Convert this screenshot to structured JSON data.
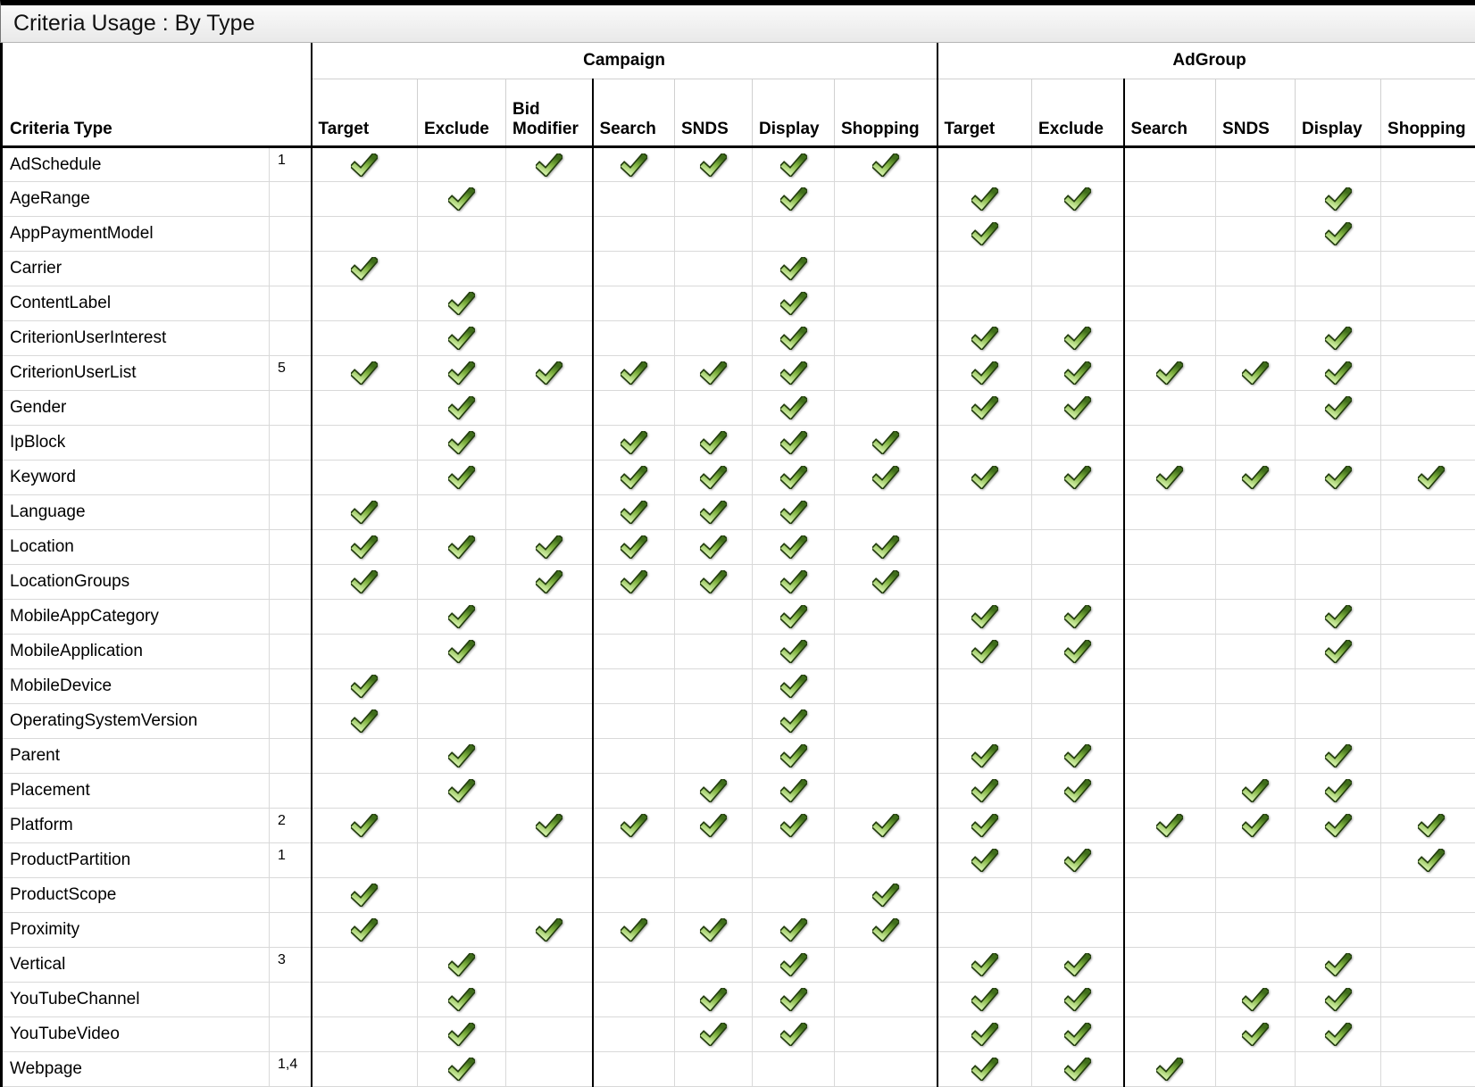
{
  "title": "Criteria Usage : By Type",
  "colors": {
    "check_outline": "#223c0e",
    "check_dark": "#3f6d1a",
    "check_mid": "#7fb23f",
    "check_light": "#cdeca1",
    "grid_line": "#d9d9d9",
    "group_border": "#000000"
  },
  "icons": {
    "check": "green-checkmark"
  },
  "table": {
    "criteria_type_header": "Criteria Type",
    "groups": [
      {
        "label": "Campaign",
        "columns": [
          "Target",
          "Exclude",
          "Bid Modifier",
          "Search",
          "SNDS",
          "Display",
          "Shopping"
        ]
      },
      {
        "label": "AdGroup",
        "columns": [
          "Target",
          "Exclude",
          "Search",
          "SNDS",
          "Display",
          "Shopping"
        ]
      }
    ],
    "rows": [
      {
        "type": "AdSchedule",
        "note": "1",
        "campaign": [
          1,
          0,
          1,
          1,
          1,
          1,
          1
        ],
        "adgroup": [
          0,
          0,
          0,
          0,
          0,
          0
        ]
      },
      {
        "type": "AgeRange",
        "campaign": [
          0,
          1,
          0,
          0,
          0,
          1,
          0
        ],
        "adgroup": [
          1,
          1,
          0,
          0,
          1,
          0
        ]
      },
      {
        "type": "AppPaymentModel",
        "campaign": [
          0,
          0,
          0,
          0,
          0,
          0,
          0
        ],
        "adgroup": [
          1,
          0,
          0,
          0,
          1,
          0
        ]
      },
      {
        "type": "Carrier",
        "campaign": [
          1,
          0,
          0,
          0,
          0,
          1,
          0
        ],
        "adgroup": [
          0,
          0,
          0,
          0,
          0,
          0
        ]
      },
      {
        "type": "ContentLabel",
        "campaign": [
          0,
          1,
          0,
          0,
          0,
          1,
          0
        ],
        "adgroup": [
          0,
          0,
          0,
          0,
          0,
          0
        ]
      },
      {
        "type": "CriterionUserInterest",
        "campaign": [
          0,
          1,
          0,
          0,
          0,
          1,
          0
        ],
        "adgroup": [
          1,
          1,
          0,
          0,
          1,
          0
        ]
      },
      {
        "type": "CriterionUserList",
        "note": "5",
        "campaign": [
          1,
          1,
          1,
          1,
          1,
          1,
          0
        ],
        "adgroup": [
          1,
          1,
          1,
          1,
          1,
          0
        ]
      },
      {
        "type": "Gender",
        "campaign": [
          0,
          1,
          0,
          0,
          0,
          1,
          0
        ],
        "adgroup": [
          1,
          1,
          0,
          0,
          1,
          0
        ]
      },
      {
        "type": "IpBlock",
        "campaign": [
          0,
          1,
          0,
          1,
          1,
          1,
          1
        ],
        "adgroup": [
          0,
          0,
          0,
          0,
          0,
          0
        ]
      },
      {
        "type": "Keyword",
        "campaign": [
          0,
          1,
          0,
          1,
          1,
          1,
          1
        ],
        "adgroup": [
          1,
          1,
          1,
          1,
          1,
          1
        ]
      },
      {
        "type": "Language",
        "campaign": [
          1,
          0,
          0,
          1,
          1,
          1,
          0
        ],
        "adgroup": [
          0,
          0,
          0,
          0,
          0,
          0
        ]
      },
      {
        "type": "Location",
        "campaign": [
          1,
          1,
          1,
          1,
          1,
          1,
          1
        ],
        "adgroup": [
          0,
          0,
          0,
          0,
          0,
          0
        ]
      },
      {
        "type": "LocationGroups",
        "campaign": [
          1,
          0,
          1,
          1,
          1,
          1,
          1
        ],
        "adgroup": [
          0,
          0,
          0,
          0,
          0,
          0
        ]
      },
      {
        "type": "MobileAppCategory",
        "campaign": [
          0,
          1,
          0,
          0,
          0,
          1,
          0
        ],
        "adgroup": [
          1,
          1,
          0,
          0,
          1,
          0
        ]
      },
      {
        "type": "MobileApplication",
        "campaign": [
          0,
          1,
          0,
          0,
          0,
          1,
          0
        ],
        "adgroup": [
          1,
          1,
          0,
          0,
          1,
          0
        ]
      },
      {
        "type": "MobileDevice",
        "campaign": [
          1,
          0,
          0,
          0,
          0,
          1,
          0
        ],
        "adgroup": [
          0,
          0,
          0,
          0,
          0,
          0
        ]
      },
      {
        "type": "OperatingSystemVersion",
        "campaign": [
          1,
          0,
          0,
          0,
          0,
          1,
          0
        ],
        "adgroup": [
          0,
          0,
          0,
          0,
          0,
          0
        ]
      },
      {
        "type": "Parent",
        "campaign": [
          0,
          1,
          0,
          0,
          0,
          1,
          0
        ],
        "adgroup": [
          1,
          1,
          0,
          0,
          1,
          0
        ]
      },
      {
        "type": "Placement",
        "campaign": [
          0,
          1,
          0,
          0,
          1,
          1,
          0
        ],
        "adgroup": [
          1,
          1,
          0,
          1,
          1,
          0
        ]
      },
      {
        "type": "Platform",
        "note": "2",
        "campaign": [
          1,
          0,
          1,
          1,
          1,
          1,
          1
        ],
        "adgroup": [
          1,
          0,
          1,
          1,
          1,
          1
        ]
      },
      {
        "type": "ProductPartition",
        "note": "1",
        "campaign": [
          0,
          0,
          0,
          0,
          0,
          0,
          0
        ],
        "adgroup": [
          1,
          1,
          0,
          0,
          0,
          1
        ]
      },
      {
        "type": "ProductScope",
        "campaign": [
          1,
          0,
          0,
          0,
          0,
          0,
          1
        ],
        "adgroup": [
          0,
          0,
          0,
          0,
          0,
          0
        ]
      },
      {
        "type": "Proximity",
        "campaign": [
          1,
          0,
          1,
          1,
          1,
          1,
          1
        ],
        "adgroup": [
          0,
          0,
          0,
          0,
          0,
          0
        ]
      },
      {
        "type": "Vertical",
        "note": "3",
        "campaign": [
          0,
          1,
          0,
          0,
          0,
          1,
          0
        ],
        "adgroup": [
          1,
          1,
          0,
          0,
          1,
          0
        ]
      },
      {
        "type": "YouTubeChannel",
        "campaign": [
          0,
          1,
          0,
          0,
          1,
          1,
          0
        ],
        "adgroup": [
          1,
          1,
          0,
          1,
          1,
          0
        ]
      },
      {
        "type": "YouTubeVideo",
        "campaign": [
          0,
          1,
          0,
          0,
          1,
          1,
          0
        ],
        "adgroup": [
          1,
          1,
          0,
          1,
          1,
          0
        ]
      },
      {
        "type": "Webpage",
        "note": "1,4",
        "campaign": [
          0,
          1,
          0,
          0,
          0,
          0,
          0
        ],
        "adgroup": [
          1,
          1,
          1,
          0,
          0,
          0
        ]
      }
    ]
  }
}
